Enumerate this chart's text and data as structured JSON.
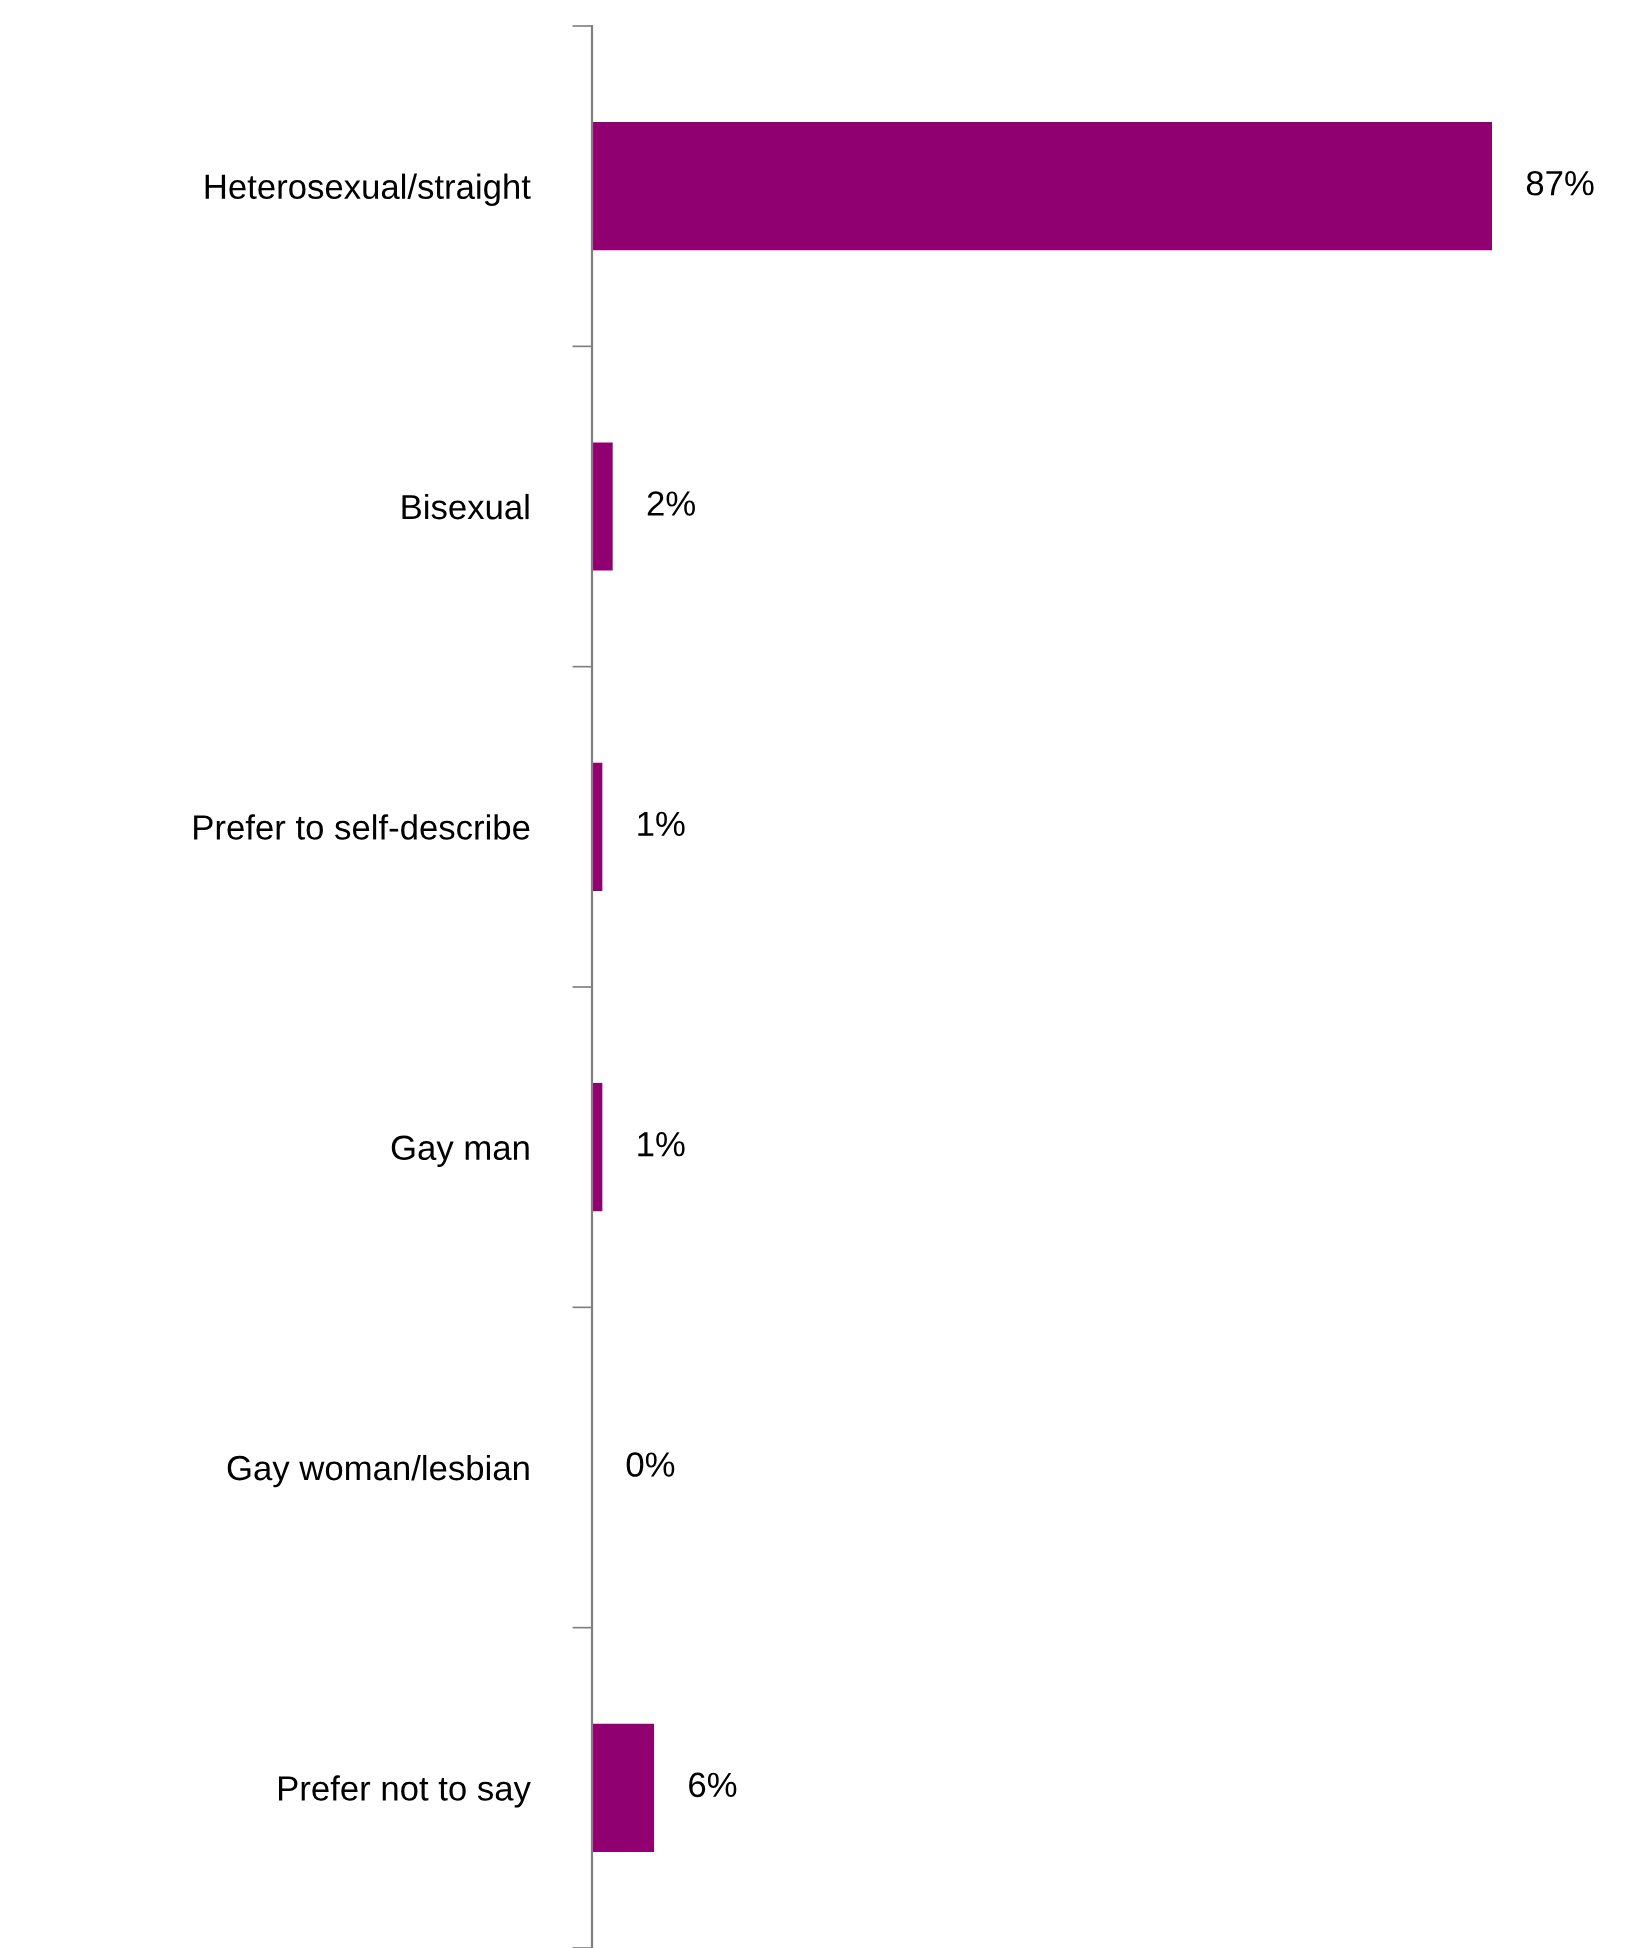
{
  "chart_data": {
    "type": "bar",
    "orientation": "horizontal",
    "categories": [
      "Heterosexual/straight",
      "Bisexual",
      "Prefer to self-describe",
      "Gay man",
      "Gay woman/lesbian",
      "Prefer not to say"
    ],
    "values": [
      87,
      2,
      1,
      1,
      0,
      6
    ],
    "value_labels": [
      "87%",
      "2%",
      "1%",
      "1%",
      "0%",
      "6%"
    ],
    "color": "#910071",
    "grid": false,
    "legend": false,
    "tick_labels": "y"
  }
}
